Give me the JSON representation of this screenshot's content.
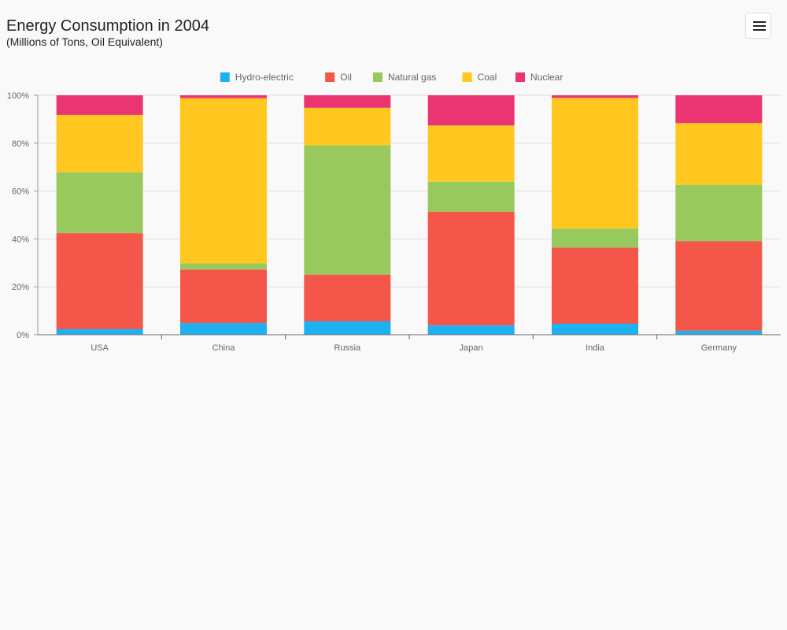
{
  "header": {
    "title": "Energy Consumption in 2004",
    "subtitle": "(Millions of Tons, Oil Equivalent)"
  },
  "menu": {
    "icon": "hamburger-menu-icon"
  },
  "chart_data": {
    "type": "bar",
    "stacked": "percent",
    "title": "Energy Consumption in 2004",
    "subtitle": "(Millions of Tons, Oil Equivalent)",
    "categories": [
      "USA",
      "China",
      "Russia",
      "Japan",
      "India",
      "Germany"
    ],
    "series": [
      {
        "name": "Hydro-electric",
        "color": "#1eb1f1",
        "values": [
          2.3,
          4.9,
          5.6,
          3.9,
          4.6,
          1.7
        ]
      },
      {
        "name": "Oil",
        "color": "#f5564a",
        "values": [
          40.1,
          22.3,
          19.5,
          47.5,
          31.8,
          37.4
        ]
      },
      {
        "name": "Natural gas",
        "color": "#97c95c",
        "values": [
          25.4,
          2.6,
          54.0,
          12.5,
          7.9,
          23.5
        ]
      },
      {
        "name": "Coal",
        "color": "#ffc71f",
        "values": [
          24.0,
          69.0,
          15.7,
          23.5,
          54.6,
          25.8
        ]
      },
      {
        "name": "Nuclear",
        "color": "#eb3573",
        "values": [
          8.2,
          1.2,
          5.2,
          12.6,
          1.1,
          11.6
        ]
      }
    ],
    "yaxis": {
      "ticks": [
        "0%",
        "20%",
        "40%",
        "60%",
        "80%",
        "100%"
      ],
      "ylim": [
        0,
        100
      ]
    },
    "grid": true,
    "legend": {
      "position": "top-center"
    }
  }
}
